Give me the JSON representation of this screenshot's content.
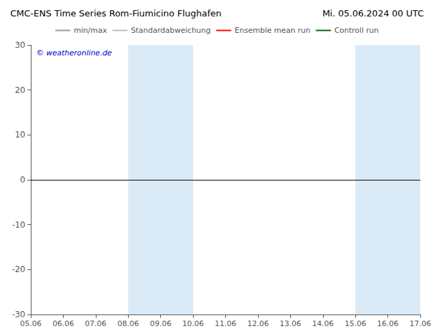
{
  "chart_data": {
    "type": "line",
    "title": "CMC-ENS Time Series Rom-Fiumicino Flughafen",
    "subtitle": "Mi. 05.06.2024 00 UTC",
    "categories": [
      "05.06",
      "06.06",
      "07.06",
      "08.06",
      "09.06",
      "10.06",
      "11.06",
      "12.06",
      "13.06",
      "14.06",
      "15.06",
      "16.06",
      "17.06"
    ],
    "series": [
      {
        "name": "min/max",
        "color": "#999999",
        "values": [
          null,
          null,
          null,
          null,
          null,
          null,
          null,
          null,
          null,
          null,
          null,
          null,
          null
        ]
      },
      {
        "name": "Standardabweichung",
        "color": "#bbbbbb",
        "values": [
          null,
          null,
          null,
          null,
          null,
          null,
          null,
          null,
          null,
          null,
          null,
          null,
          null
        ]
      },
      {
        "name": "Ensemble mean run",
        "color": "#ff0000",
        "values": [
          null,
          null,
          null,
          null,
          null,
          null,
          null,
          null,
          null,
          null,
          null,
          null,
          null
        ]
      },
      {
        "name": "Controll run",
        "color": "#006600",
        "values": [
          null,
          null,
          null,
          null,
          null,
          null,
          null,
          null,
          null,
          null,
          null,
          null,
          null
        ]
      }
    ],
    "ylim": [
      -30,
      30
    ],
    "yticks": [
      -30,
      -20,
      -10,
      0,
      10,
      20,
      30
    ],
    "grid": false,
    "legend": "top",
    "bands": [
      {
        "from": "08.06",
        "to": "10.06",
        "color": "#daeaf6"
      },
      {
        "from": "15.06",
        "to": "17.06",
        "color": "#daeaf6"
      }
    ],
    "reference_lines": [
      {
        "y": 0,
        "color": "#000000"
      }
    ],
    "annotations": [
      {
        "text": "© weatheronline.de",
        "color": "#0000cc"
      }
    ]
  }
}
